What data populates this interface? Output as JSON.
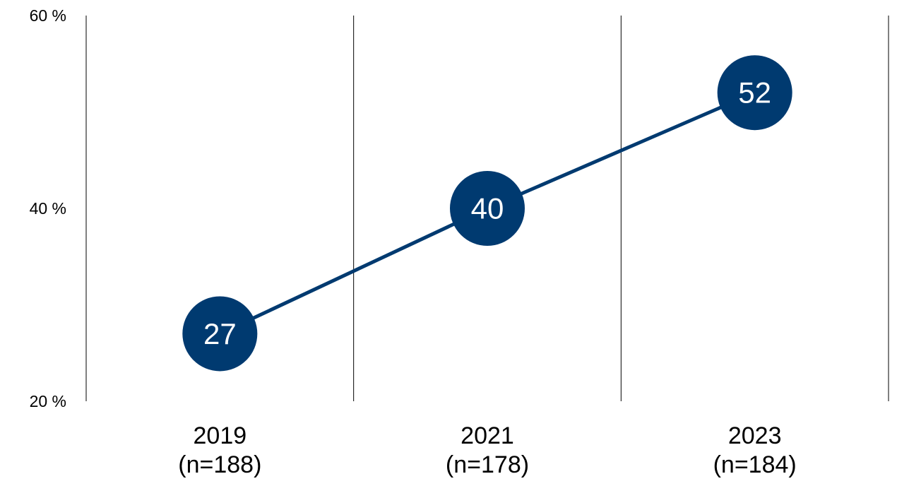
{
  "chart_data": {
    "type": "line",
    "categories": [
      "2019\n(n=188)",
      "2021\n(n=178)",
      "2023\n(n=184)"
    ],
    "series": [
      {
        "values": [
          27,
          40,
          52
        ]
      }
    ],
    "data_labels": [
      "27",
      "40",
      "52"
    ],
    "y_ticks": [
      20,
      40,
      60
    ],
    "y_tick_labels": [
      "20 %",
      "40 %",
      "60 %"
    ],
    "ylim": [
      20,
      60
    ],
    "y_unit": "%",
    "title": "",
    "xlabel": "",
    "ylabel": "",
    "grid": "vertical separators",
    "colors": {
      "series": "#003a70",
      "separator": "#000000",
      "label_on_marker": "#ffffff"
    }
  }
}
